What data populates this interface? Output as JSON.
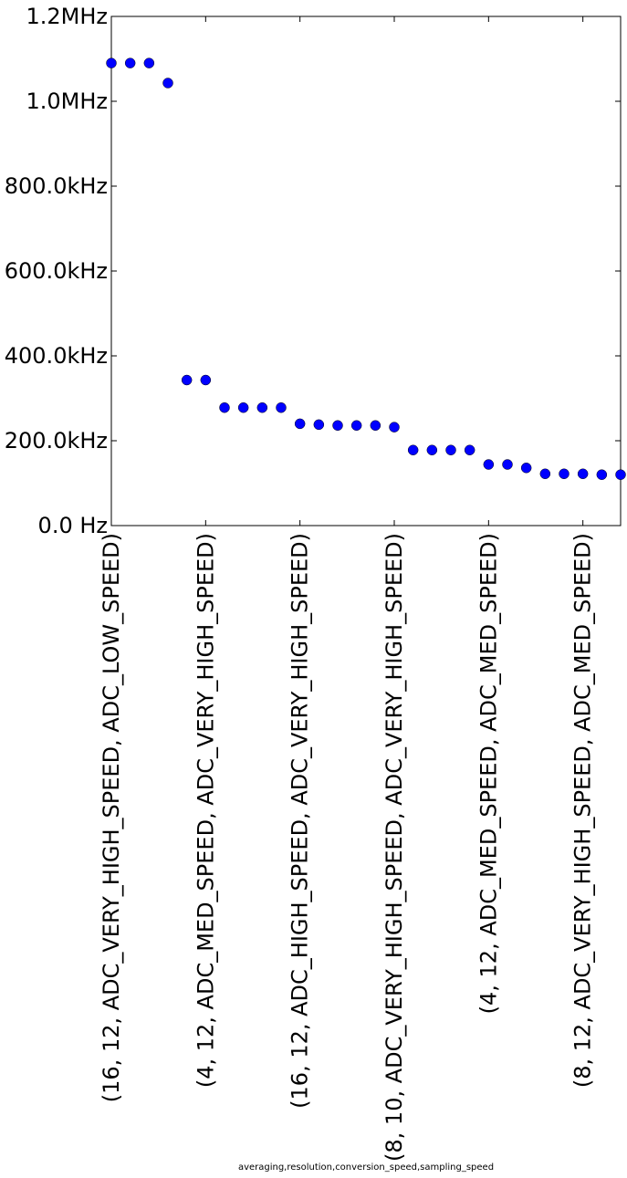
{
  "chart_data": {
    "type": "scatter",
    "xlabel": "averaging,resolution,conversion_speed,sampling_speed",
    "ylabel": "",
    "title": "",
    "ylim": [
      0,
      1200000
    ],
    "yticks": [
      {
        "value": 0,
        "label": "0.0 Hz"
      },
      {
        "value": 200000,
        "label": "200.0kHz"
      },
      {
        "value": 400000,
        "label": "400.0kHz"
      },
      {
        "value": 600000,
        "label": "600.0kHz"
      },
      {
        "value": 800000,
        "label": "800.0kHz"
      },
      {
        "value": 1000000,
        "label": "1.0MHz"
      },
      {
        "value": 1200000,
        "label": "1.2MHz"
      }
    ],
    "xlim": [
      0,
      27
    ],
    "xticks": [
      {
        "index": 0,
        "label": "(16, 12, ADC_VERY_HIGH_SPEED, ADC_LOW_SPEED)"
      },
      {
        "index": 5,
        "label": "(4, 12, ADC_MED_SPEED, ADC_VERY_HIGH_SPEED)"
      },
      {
        "index": 10,
        "label": "(16, 12, ADC_HIGH_SPEED, ADC_VERY_HIGH_SPEED)"
      },
      {
        "index": 15,
        "label": "(8, 10, ADC_VERY_HIGH_SPEED, ADC_VERY_HIGH_SPEED)"
      },
      {
        "index": 20,
        "label": "(4, 12, ADC_MED_SPEED, ADC_MED_SPEED)"
      },
      {
        "index": 25,
        "label": "(8, 12, ADC_VERY_HIGH_SPEED, ADC_MED_SPEED)"
      }
    ],
    "values": [
      1090000,
      1090000,
      1090000,
      1043000,
      343000,
      343000,
      278000,
      278000,
      278000,
      278000,
      240000,
      238000,
      236000,
      236000,
      236000,
      232000,
      178000,
      178000,
      178000,
      178000,
      144000,
      144000,
      136000,
      122000,
      122000,
      122000,
      120000,
      120000
    ],
    "marker_color": "#0000ff",
    "grid": false
  }
}
